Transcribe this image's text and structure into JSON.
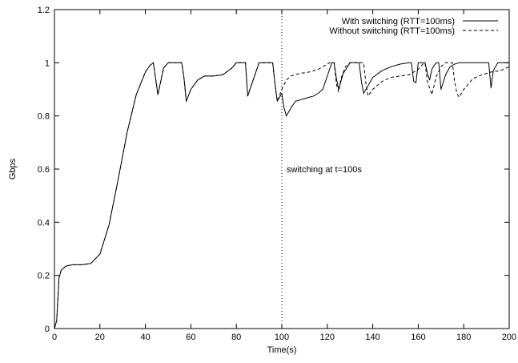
{
  "chart_data": {
    "type": "line",
    "xlabel": "Time(s)",
    "ylabel": "Gbps",
    "xlim": [
      0,
      200
    ],
    "ylim": [
      0,
      1.2
    ],
    "xticks": [
      0,
      20,
      40,
      60,
      80,
      100,
      120,
      140,
      160,
      180,
      200
    ],
    "yticks": [
      0,
      0.2,
      0.4,
      0.6,
      0.8,
      1,
      1.2
    ],
    "xtick_labels": [
      "0",
      "20",
      "40",
      "60",
      "80",
      "100",
      "120",
      "140",
      "160",
      "180",
      "200"
    ],
    "ytick_labels": [
      "0",
      "0.2",
      "0.4",
      "0.6",
      "0.8",
      "1",
      "1.2"
    ],
    "grid": false,
    "legend_position": "top-right",
    "series": [
      {
        "name": "With switching (RTT=100ms)",
        "style": "solid",
        "x": [
          0,
          1,
          2,
          3,
          5,
          8,
          12,
          16,
          20,
          24,
          28,
          32,
          36,
          40,
          42,
          43.5,
          44.5,
          45.5,
          48,
          50,
          56,
          57,
          58,
          60,
          63,
          66,
          70,
          74,
          78,
          80,
          82,
          84,
          85,
          88,
          90,
          94,
          96,
          97,
          98,
          100,
          101,
          102,
          104,
          106,
          108,
          110,
          112,
          114,
          116,
          118,
          120,
          122,
          123,
          124,
          125,
          127,
          130,
          133,
          134,
          135,
          136,
          137,
          140,
          144,
          148,
          152,
          156,
          157,
          158,
          159,
          160,
          161,
          162,
          163,
          164,
          165,
          166,
          167,
          168,
          169,
          170,
          172,
          174,
          176,
          178,
          180,
          184,
          188,
          190,
          191,
          192,
          193,
          195,
          197,
          198,
          200
        ],
        "y": [
          0,
          0.03,
          0.19,
          0.22,
          0.235,
          0.24,
          0.24,
          0.245,
          0.28,
          0.39,
          0.56,
          0.74,
          0.88,
          0.965,
          0.99,
          1.0,
          0.94,
          0.88,
          0.98,
          1.0,
          1.0,
          0.94,
          0.855,
          0.9,
          0.935,
          0.95,
          0.95,
          0.955,
          0.98,
          1.0,
          1.0,
          1.0,
          0.875,
          0.95,
          1.0,
          1.0,
          1.0,
          0.92,
          0.855,
          0.885,
          0.83,
          0.8,
          0.83,
          0.855,
          0.86,
          0.865,
          0.87,
          0.875,
          0.885,
          0.9,
          0.95,
          1.0,
          1.0,
          0.94,
          0.9,
          0.96,
          1.0,
          1.0,
          1.0,
          0.93,
          0.885,
          0.9,
          0.945,
          0.97,
          0.985,
          0.995,
          1.0,
          1.0,
          0.93,
          0.925,
          1.0,
          1.0,
          1.0,
          1.0,
          0.96,
          0.935,
          0.975,
          0.99,
          1.0,
          1.0,
          0.9,
          0.955,
          0.985,
          0.995,
          1.0,
          1.0,
          1.0,
          1.0,
          1.0,
          1.0,
          0.905,
          0.97,
          1.0,
          1.0,
          1.0,
          1.0
        ]
      },
      {
        "name": "Without switching (RTT=100ms)",
        "style": "dashed",
        "x": [
          0,
          1,
          2,
          3,
          5,
          8,
          12,
          16,
          20,
          24,
          28,
          32,
          36,
          40,
          42,
          43.5,
          44.5,
          45.5,
          48,
          50,
          56,
          57,
          58,
          60,
          63,
          66,
          70,
          74,
          78,
          80,
          82,
          84,
          85,
          88,
          90,
          94,
          96,
          97,
          98,
          100,
          102,
          104,
          108,
          112,
          116,
          120,
          121,
          122,
          123,
          124,
          125,
          126,
          128,
          130,
          134,
          136,
          137,
          138,
          140,
          144,
          148,
          152,
          156,
          160,
          162,
          163,
          164,
          166,
          168,
          170,
          172,
          174,
          175,
          176,
          177,
          178,
          180,
          184,
          188,
          192,
          196,
          200
        ],
        "y": [
          0,
          0.03,
          0.19,
          0.22,
          0.235,
          0.24,
          0.24,
          0.245,
          0.28,
          0.39,
          0.56,
          0.74,
          0.88,
          0.965,
          0.99,
          1.0,
          0.94,
          0.88,
          0.98,
          1.0,
          1.0,
          0.94,
          0.855,
          0.9,
          0.935,
          0.95,
          0.95,
          0.955,
          0.98,
          1.0,
          1.0,
          1.0,
          0.875,
          0.95,
          1.0,
          1.0,
          1.0,
          0.92,
          0.855,
          0.9,
          0.935,
          0.95,
          0.96,
          0.965,
          0.975,
          0.995,
          1.0,
          1.0,
          1.0,
          0.92,
          0.89,
          0.94,
          0.985,
          1.0,
          1.0,
          1.0,
          0.92,
          0.875,
          0.9,
          0.93,
          0.945,
          0.95,
          0.955,
          0.975,
          0.995,
          1.0,
          0.93,
          0.88,
          0.95,
          0.985,
          1.0,
          1.0,
          1.0,
          0.93,
          0.885,
          0.87,
          0.9,
          0.94,
          0.955,
          0.965,
          0.97,
          0.985
        ]
      }
    ],
    "annotations": [
      {
        "type": "vline",
        "x": 100,
        "style": "dotted",
        "text": "switching at t=100s",
        "text_y": 0.6
      }
    ]
  }
}
